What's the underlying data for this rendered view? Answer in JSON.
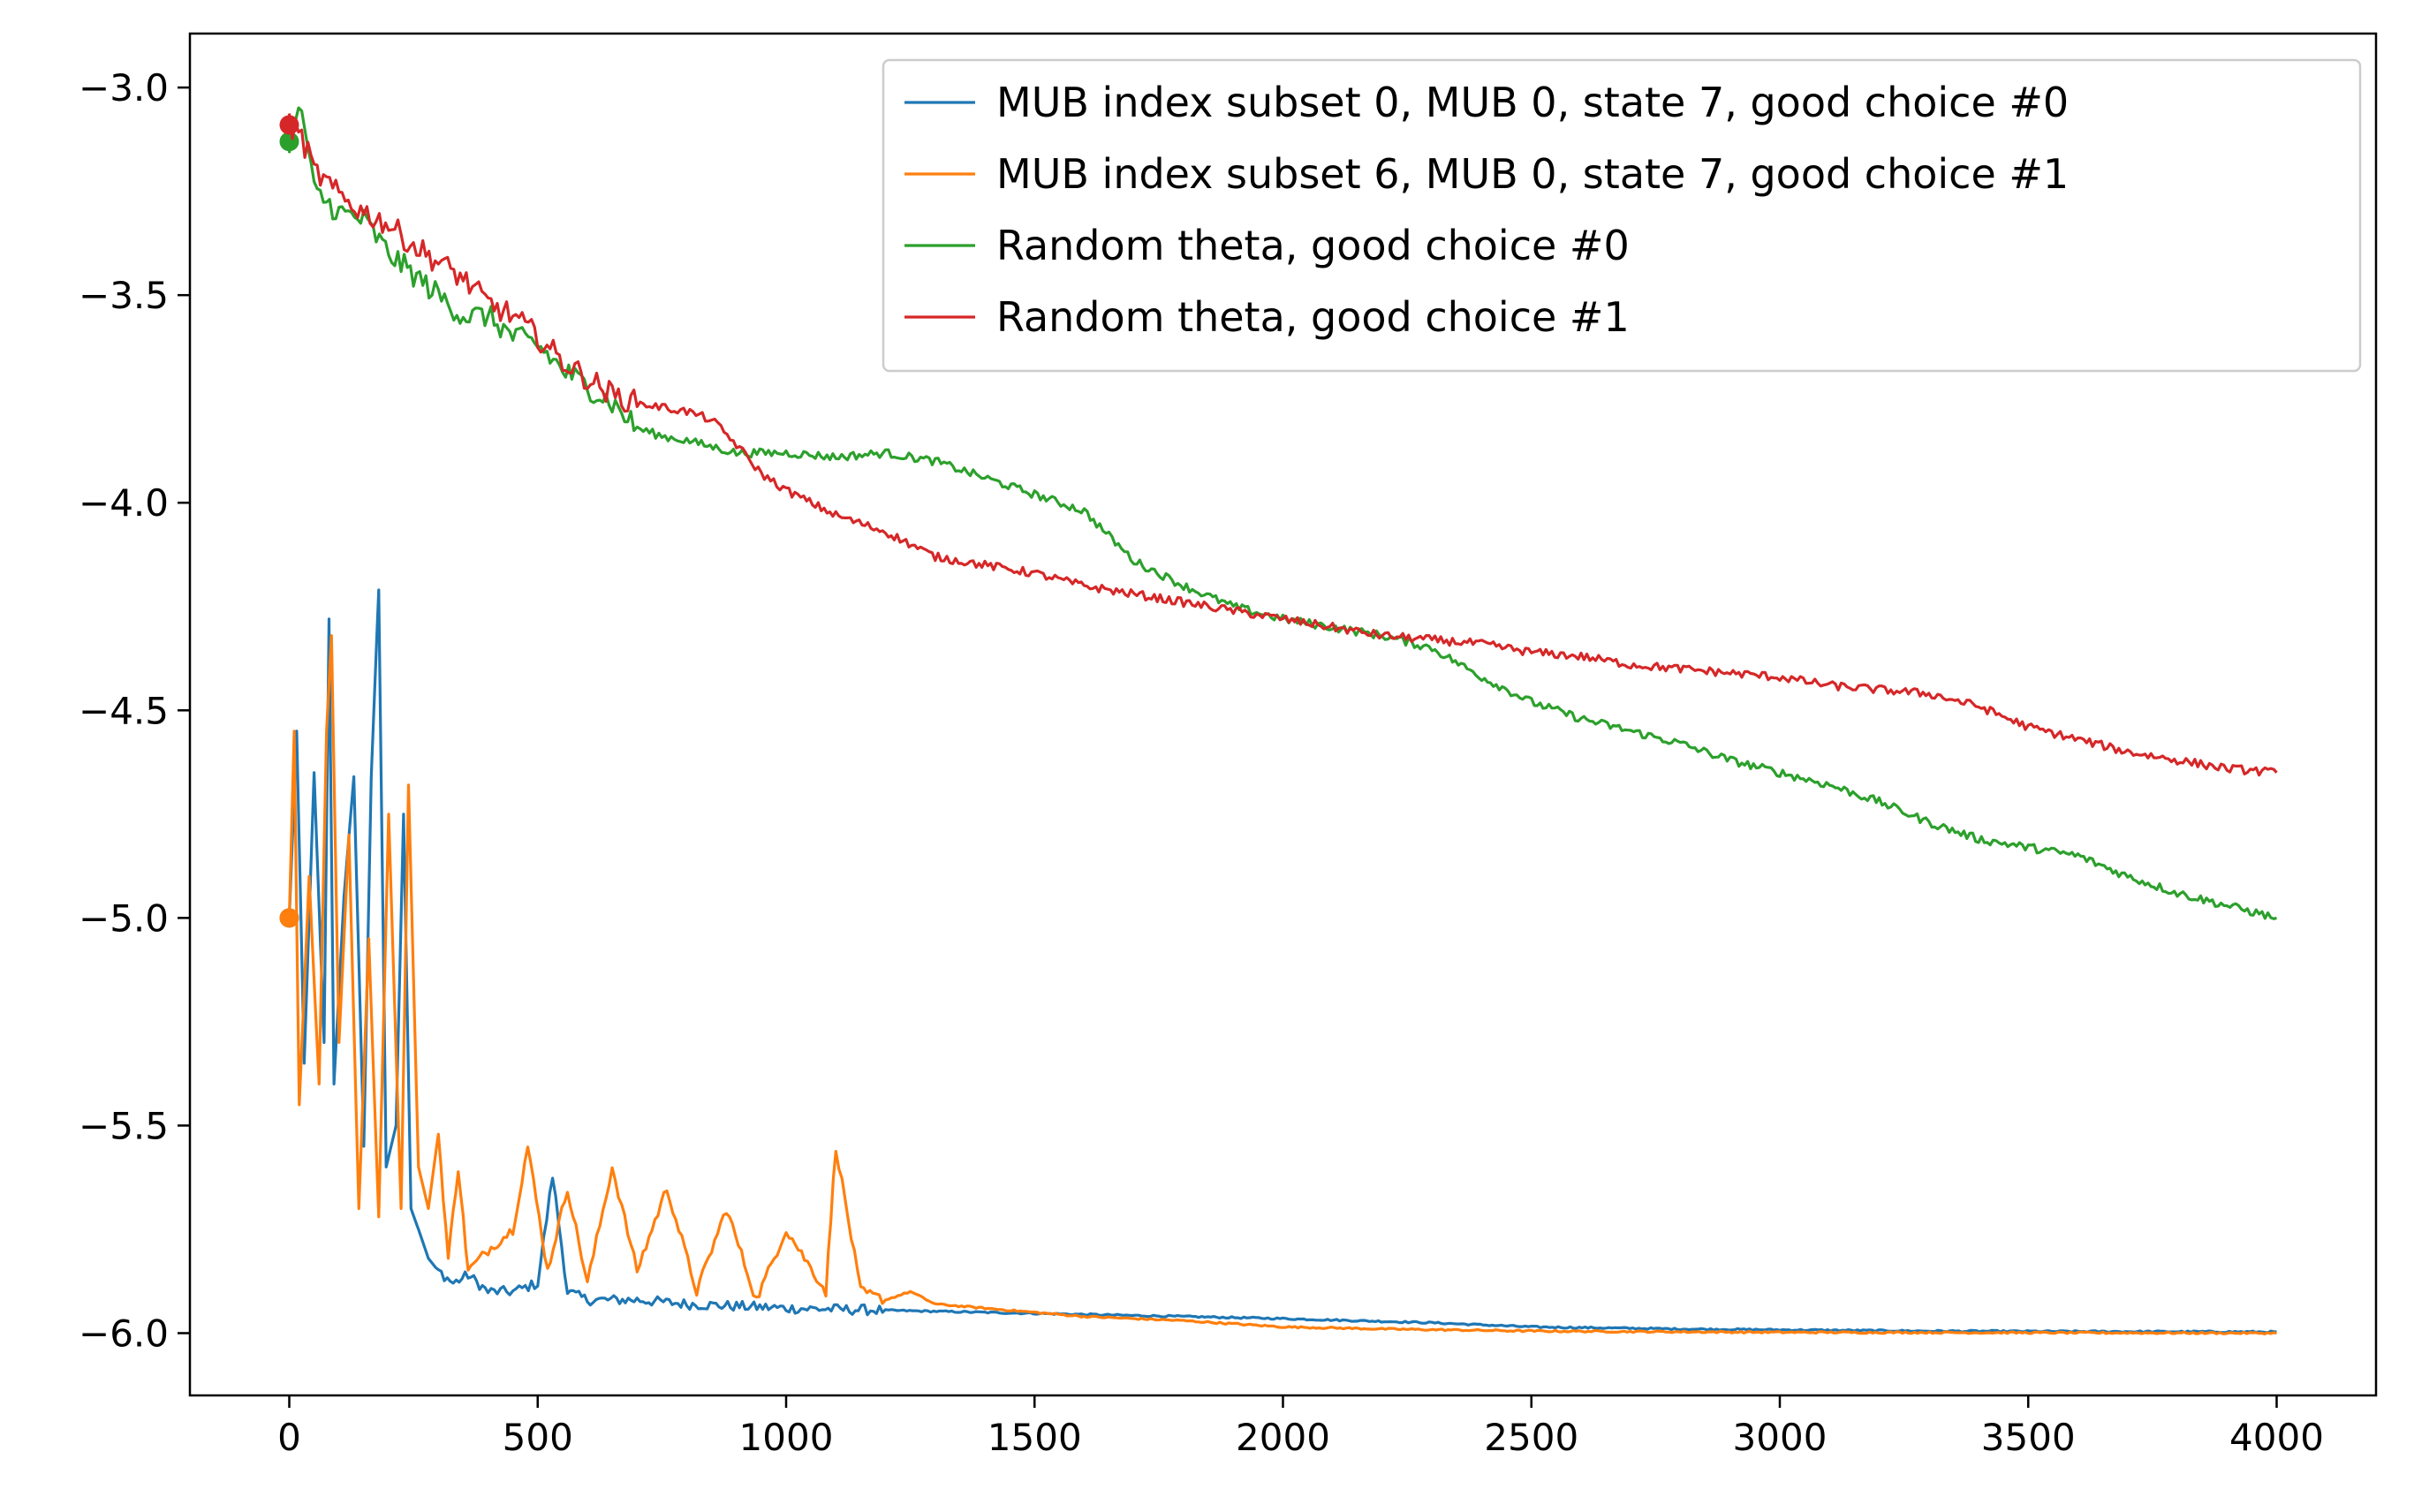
{
  "chart_data": {
    "type": "line",
    "title": "",
    "xlabel": "",
    "ylabel": "",
    "xlim": [
      -200,
      4200
    ],
    "ylim": [
      -6.15,
      -2.87
    ],
    "xticks": [
      0,
      500,
      1000,
      1500,
      2000,
      2500,
      3000,
      3500,
      4000
    ],
    "yticks": [
      -3.0,
      -3.5,
      -4.0,
      -4.5,
      -5.0,
      -5.5,
      -6.0
    ],
    "xtick_labels": [
      "0",
      "500",
      "1000",
      "1500",
      "2000",
      "2500",
      "3000",
      "3500",
      "4000"
    ],
    "ytick_labels": [
      "−3.0",
      "−3.5",
      "−4.0",
      "−4.5",
      "−5.0",
      "−5.5",
      "−6.0"
    ],
    "grid": false,
    "legend_position": "top-right",
    "series": [
      {
        "name": "MUB index subset 0, MUB 0, state 7, good choice #0",
        "color": "#1f77b4",
        "start_marker": [
          0,
          -5.0
        ],
        "points": [
          [
            0,
            -5.0
          ],
          [
            15,
            -4.55
          ],
          [
            30,
            -5.35
          ],
          [
            50,
            -4.65
          ],
          [
            70,
            -5.3
          ],
          [
            80,
            -4.28
          ],
          [
            90,
            -5.4
          ],
          [
            110,
            -4.95
          ],
          [
            130,
            -4.66
          ],
          [
            150,
            -5.55
          ],
          [
            165,
            -4.66
          ],
          [
            180,
            -4.21
          ],
          [
            195,
            -5.6
          ],
          [
            215,
            -5.5
          ],
          [
            230,
            -4.75
          ],
          [
            245,
            -5.7
          ],
          [
            260,
            -5.75
          ],
          [
            280,
            -5.82
          ],
          [
            300,
            -5.85
          ],
          [
            330,
            -5.88
          ],
          [
            360,
            -5.86
          ],
          [
            400,
            -5.9
          ],
          [
            450,
            -5.9
          ],
          [
            500,
            -5.88
          ],
          [
            530,
            -5.62
          ],
          [
            560,
            -5.9
          ],
          [
            600,
            -5.92
          ],
          [
            700,
            -5.92
          ],
          [
            800,
            -5.93
          ],
          [
            900,
            -5.935
          ],
          [
            1000,
            -5.94
          ],
          [
            1200,
            -5.945
          ],
          [
            1400,
            -5.95
          ],
          [
            1600,
            -5.955
          ],
          [
            1800,
            -5.96
          ],
          [
            2000,
            -5.965
          ],
          [
            2300,
            -5.975
          ],
          [
            2500,
            -5.985
          ],
          [
            2800,
            -5.99
          ],
          [
            3000,
            -5.992
          ],
          [
            3300,
            -5.995
          ],
          [
            3600,
            -5.996
          ],
          [
            4000,
            -5.997
          ]
        ]
      },
      {
        "name": "MUB index subset 6, MUB 0, state 7, good choice #1",
        "color": "#ff7f0e",
        "start_marker": [
          0,
          -5.0
        ],
        "points": [
          [
            0,
            -5.0
          ],
          [
            10,
            -4.55
          ],
          [
            20,
            -5.45
          ],
          [
            40,
            -4.9
          ],
          [
            60,
            -5.4
          ],
          [
            75,
            -4.55
          ],
          [
            85,
            -4.32
          ],
          [
            100,
            -5.3
          ],
          [
            120,
            -4.8
          ],
          [
            140,
            -5.7
          ],
          [
            160,
            -5.05
          ],
          [
            180,
            -5.72
          ],
          [
            200,
            -4.75
          ],
          [
            225,
            -5.7
          ],
          [
            240,
            -4.68
          ],
          [
            260,
            -5.6
          ],
          [
            280,
            -5.7
          ],
          [
            300,
            -5.52
          ],
          [
            320,
            -5.82
          ],
          [
            340,
            -5.6
          ],
          [
            360,
            -5.85
          ],
          [
            400,
            -5.8
          ],
          [
            450,
            -5.75
          ],
          [
            480,
            -5.55
          ],
          [
            520,
            -5.85
          ],
          [
            560,
            -5.65
          ],
          [
            600,
            -5.88
          ],
          [
            650,
            -5.6
          ],
          [
            700,
            -5.85
          ],
          [
            760,
            -5.65
          ],
          [
            820,
            -5.9
          ],
          [
            880,
            -5.7
          ],
          [
            940,
            -5.92
          ],
          [
            1000,
            -5.75
          ],
          [
            1080,
            -5.9
          ],
          [
            1100,
            -5.55
          ],
          [
            1150,
            -5.9
          ],
          [
            1200,
            -5.92
          ],
          [
            1250,
            -5.9
          ],
          [
            1300,
            -5.93
          ],
          [
            1400,
            -5.94
          ],
          [
            1500,
            -5.95
          ],
          [
            1600,
            -5.96
          ],
          [
            1800,
            -5.97
          ],
          [
            2000,
            -5.985
          ],
          [
            2200,
            -5.99
          ],
          [
            2500,
            -5.995
          ],
          [
            3000,
            -5.998
          ],
          [
            3500,
            -5.999
          ],
          [
            4000,
            -6.0
          ]
        ]
      },
      {
        "name": "Random theta, good choice #0",
        "color": "#2ca02c",
        "start_marker": [
          0,
          -3.13
        ],
        "points": [
          [
            0,
            -3.13
          ],
          [
            25,
            -3.05
          ],
          [
            50,
            -3.25
          ],
          [
            100,
            -3.3
          ],
          [
            150,
            -3.32
          ],
          [
            200,
            -3.4
          ],
          [
            250,
            -3.45
          ],
          [
            300,
            -3.5
          ],
          [
            350,
            -3.55
          ],
          [
            400,
            -3.55
          ],
          [
            450,
            -3.6
          ],
          [
            500,
            -3.62
          ],
          [
            550,
            -3.68
          ],
          [
            600,
            -3.72
          ],
          [
            650,
            -3.76
          ],
          [
            700,
            -3.82
          ],
          [
            750,
            -3.84
          ],
          [
            800,
            -3.85
          ],
          [
            900,
            -3.88
          ],
          [
            1000,
            -3.88
          ],
          [
            1100,
            -3.89
          ],
          [
            1200,
            -3.88
          ],
          [
            1300,
            -3.9
          ],
          [
            1400,
            -3.94
          ],
          [
            1500,
            -3.98
          ],
          [
            1600,
            -4.02
          ],
          [
            1650,
            -4.08
          ],
          [
            1700,
            -4.14
          ],
          [
            1800,
            -4.2
          ],
          [
            1900,
            -4.25
          ],
          [
            2000,
            -4.28
          ],
          [
            2100,
            -4.3
          ],
          [
            2200,
            -4.32
          ],
          [
            2300,
            -4.35
          ],
          [
            2400,
            -4.42
          ],
          [
            2500,
            -4.48
          ],
          [
            2600,
            -4.52
          ],
          [
            2700,
            -4.55
          ],
          [
            2800,
            -4.58
          ],
          [
            2900,
            -4.62
          ],
          [
            3000,
            -4.65
          ],
          [
            3100,
            -4.68
          ],
          [
            3200,
            -4.72
          ],
          [
            3300,
            -4.77
          ],
          [
            3400,
            -4.81
          ],
          [
            3500,
            -4.83
          ],
          [
            3600,
            -4.85
          ],
          [
            3700,
            -4.9
          ],
          [
            3800,
            -4.94
          ],
          [
            3900,
            -4.97
          ],
          [
            4000,
            -5.0
          ]
        ]
      },
      {
        "name": "Random theta, good choice #1",
        "color": "#d62728",
        "start_marker": [
          0,
          -3.09
        ],
        "points": [
          [
            0,
            -3.09
          ],
          [
            25,
            -3.12
          ],
          [
            50,
            -3.2
          ],
          [
            100,
            -3.26
          ],
          [
            150,
            -3.3
          ],
          [
            200,
            -3.33
          ],
          [
            250,
            -3.38
          ],
          [
            300,
            -3.42
          ],
          [
            350,
            -3.46
          ],
          [
            400,
            -3.52
          ],
          [
            450,
            -3.55
          ],
          [
            500,
            -3.6
          ],
          [
            550,
            -3.66
          ],
          [
            600,
            -3.7
          ],
          [
            650,
            -3.74
          ],
          [
            700,
            -3.76
          ],
          [
            750,
            -3.77
          ],
          [
            800,
            -3.78
          ],
          [
            850,
            -3.8
          ],
          [
            900,
            -3.86
          ],
          [
            950,
            -3.93
          ],
          [
            1000,
            -3.97
          ],
          [
            1100,
            -4.03
          ],
          [
            1200,
            -4.07
          ],
          [
            1300,
            -4.13
          ],
          [
            1400,
            -4.15
          ],
          [
            1500,
            -4.17
          ],
          [
            1600,
            -4.2
          ],
          [
            1700,
            -4.22
          ],
          [
            1800,
            -4.24
          ],
          [
            1900,
            -4.26
          ],
          [
            2000,
            -4.28
          ],
          [
            2100,
            -4.3
          ],
          [
            2200,
            -4.32
          ],
          [
            2300,
            -4.33
          ],
          [
            2400,
            -4.34
          ],
          [
            2500,
            -4.36
          ],
          [
            2600,
            -4.37
          ],
          [
            2700,
            -4.39
          ],
          [
            2800,
            -4.4
          ],
          [
            2900,
            -4.41
          ],
          [
            3000,
            -4.42
          ],
          [
            3100,
            -4.44
          ],
          [
            3200,
            -4.45
          ],
          [
            3300,
            -4.46
          ],
          [
            3400,
            -4.49
          ],
          [
            3500,
            -4.54
          ],
          [
            3600,
            -4.57
          ],
          [
            3700,
            -4.6
          ],
          [
            3800,
            -4.62
          ],
          [
            3900,
            -4.64
          ],
          [
            4000,
            -4.65
          ]
        ]
      }
    ]
  }
}
